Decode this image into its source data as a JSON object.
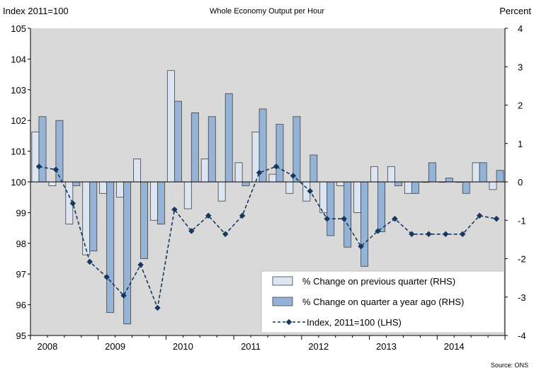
{
  "chart_data": {
    "type": "bar+line",
    "title": "Whole Economy Output per Hour",
    "ylabel_left": "Index 2011=100",
    "ylabel_right": "Percent",
    "source": "Source: ONS",
    "y_left": {
      "min": 95,
      "max": 105,
      "ticks": [
        "95",
        "96",
        "97",
        "98",
        "99",
        "100",
        "101",
        "102",
        "103",
        "104",
        "105"
      ]
    },
    "y_right": {
      "min": -4,
      "max": 4,
      "ticks": [
        "-4",
        "-3",
        "-2",
        "-1",
        "0",
        "1",
        "2",
        "3",
        "4"
      ]
    },
    "x_years": [
      "2008",
      "2009",
      "2010",
      "2011",
      "2012",
      "2013",
      "2014"
    ],
    "quarters": [
      "2008 Q1",
      "2008 Q2",
      "2008 Q3",
      "2008 Q4",
      "2009 Q1",
      "2009 Q2",
      "2009 Q3",
      "2009 Q4",
      "2010 Q1",
      "2010 Q2",
      "2010 Q3",
      "2010 Q4",
      "2011 Q1",
      "2011 Q2",
      "2011 Q3",
      "2011 Q4",
      "2012 Q1",
      "2012 Q2",
      "2012 Q3",
      "2012 Q4",
      "2013 Q1",
      "2013 Q2",
      "2013 Q3",
      "2013 Q4",
      "2014 Q1",
      "2014 Q2",
      "2014 Q3",
      "2014 Q4"
    ],
    "series": [
      {
        "name": "% Change on previous quarter (RHS)",
        "axis": "right",
        "kind": "bar",
        "color": "#dce6f2",
        "values": [
          1.3,
          -0.1,
          -1.1,
          -1.9,
          -0.3,
          -0.4,
          0.6,
          -1.0,
          2.9,
          -0.7,
          0.6,
          -0.5,
          0.5,
          1.3,
          0.2,
          -0.3,
          -0.5,
          -0.8,
          -0.1,
          -0.8,
          0.4,
          0.4,
          -0.3,
          0.0,
          0.0,
          0.0,
          0.5,
          -0.2
        ]
      },
      {
        "name": "% Change on quarter a year ago (RHS)",
        "axis": "right",
        "kind": "bar",
        "color": "#95b3d7",
        "values": [
          1.7,
          1.6,
          -0.1,
          -1.8,
          -3.4,
          -3.7,
          -2.0,
          -1.1,
          2.1,
          1.8,
          1.7,
          2.3,
          -0.1,
          1.9,
          1.5,
          1.7,
          0.7,
          -1.4,
          -1.7,
          -2.2,
          -1.3,
          -0.1,
          -0.3,
          0.5,
          0.1,
          -0.3,
          0.5,
          0.3
        ]
      },
      {
        "name": "Index, 2011=100 (LHS)",
        "axis": "left",
        "kind": "line",
        "color": "#17375e",
        "values": [
          100.5,
          100.4,
          99.3,
          97.4,
          96.9,
          96.3,
          97.3,
          95.9,
          99.1,
          98.4,
          98.9,
          98.3,
          98.9,
          100.3,
          100.5,
          100.2,
          99.7,
          98.8,
          98.8,
          97.9,
          98.4,
          98.8,
          98.3,
          98.3,
          98.3,
          98.3,
          98.9,
          98.8
        ]
      }
    ],
    "legend_position": "bottom-right",
    "grid": false
  }
}
